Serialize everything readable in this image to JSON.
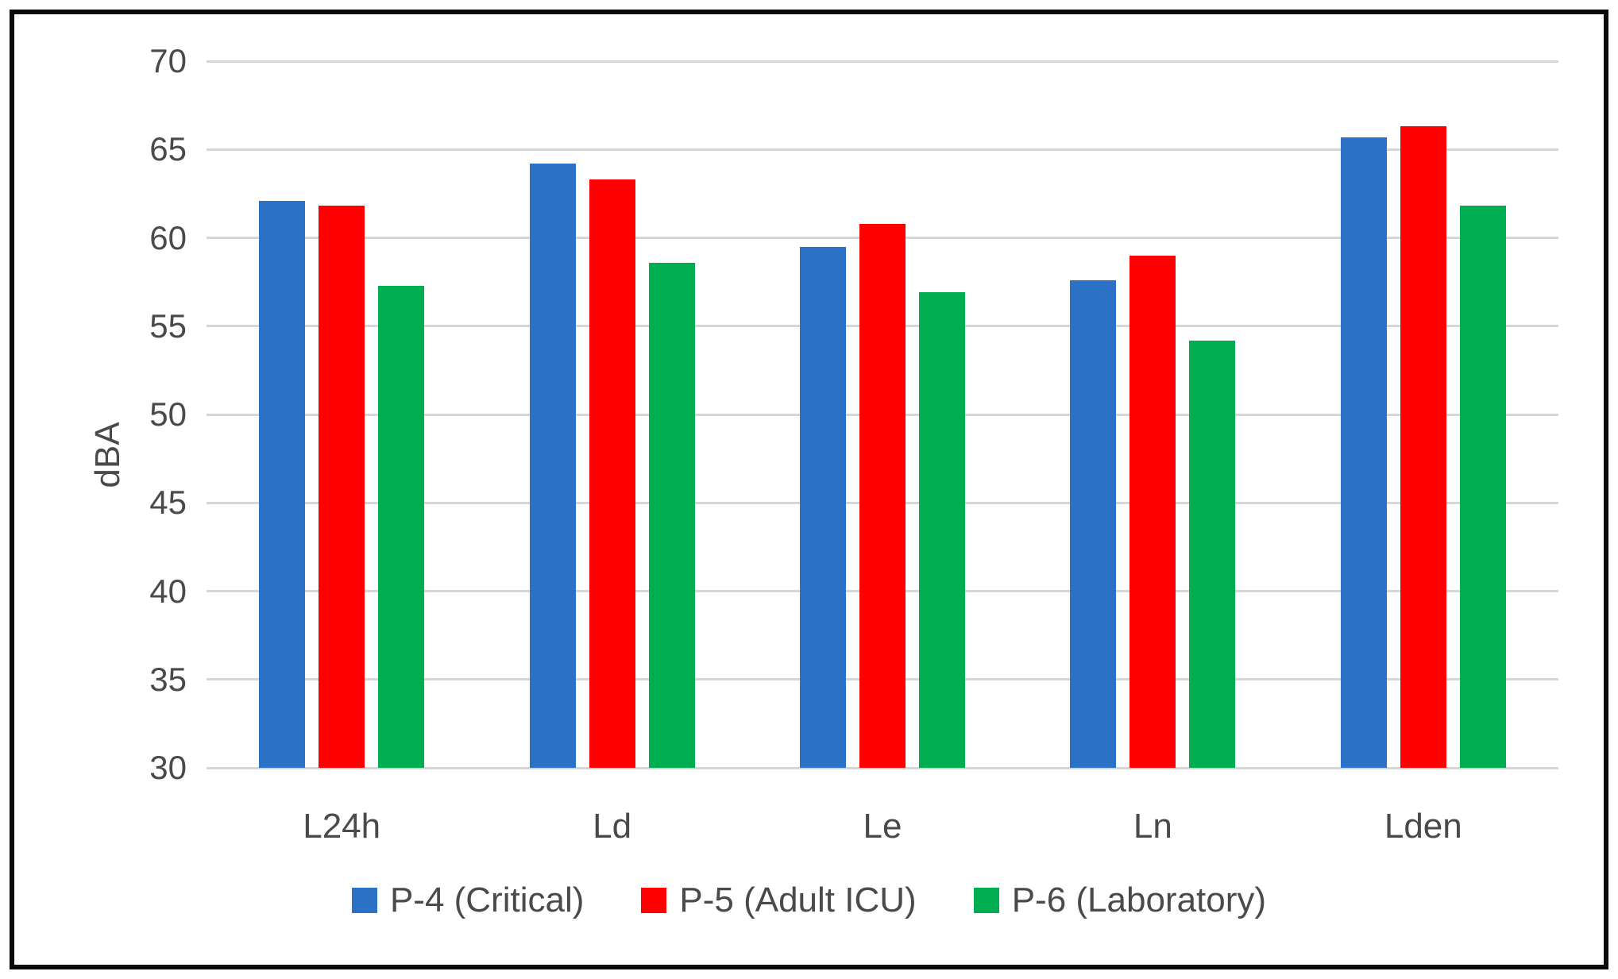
{
  "chart_data": {
    "type": "bar",
    "title": "",
    "categories": [
      "L24h",
      "Ld",
      "Le",
      "Ln",
      "Lden"
    ],
    "series": [
      {
        "name": "P-4 (Critical)",
        "color": "#2b71c5",
        "values": [
          62.1,
          64.2,
          59.5,
          57.6,
          65.7
        ]
      },
      {
        "name": "P-5 (Adult ICU)",
        "color": "#ff0000",
        "values": [
          61.8,
          63.3,
          60.8,
          59.0,
          66.3
        ]
      },
      {
        "name": "P-6 (Laboratory)",
        "color": "#00ad50",
        "values": [
          57.3,
          58.6,
          56.9,
          54.2,
          61.8
        ]
      }
    ],
    "xlabel": "",
    "ylabel": "dBA",
    "ylim": [
      30,
      70
    ],
    "yticks": [
      70,
      65,
      60,
      55,
      50,
      45,
      40,
      35,
      30
    ],
    "grid": true,
    "legend_position": "bottom"
  },
  "colors": {
    "grid": "#d6d6d6",
    "text": "#4a4a4a",
    "frame_border": "#0b0b0b",
    "background": "#ffffff"
  }
}
